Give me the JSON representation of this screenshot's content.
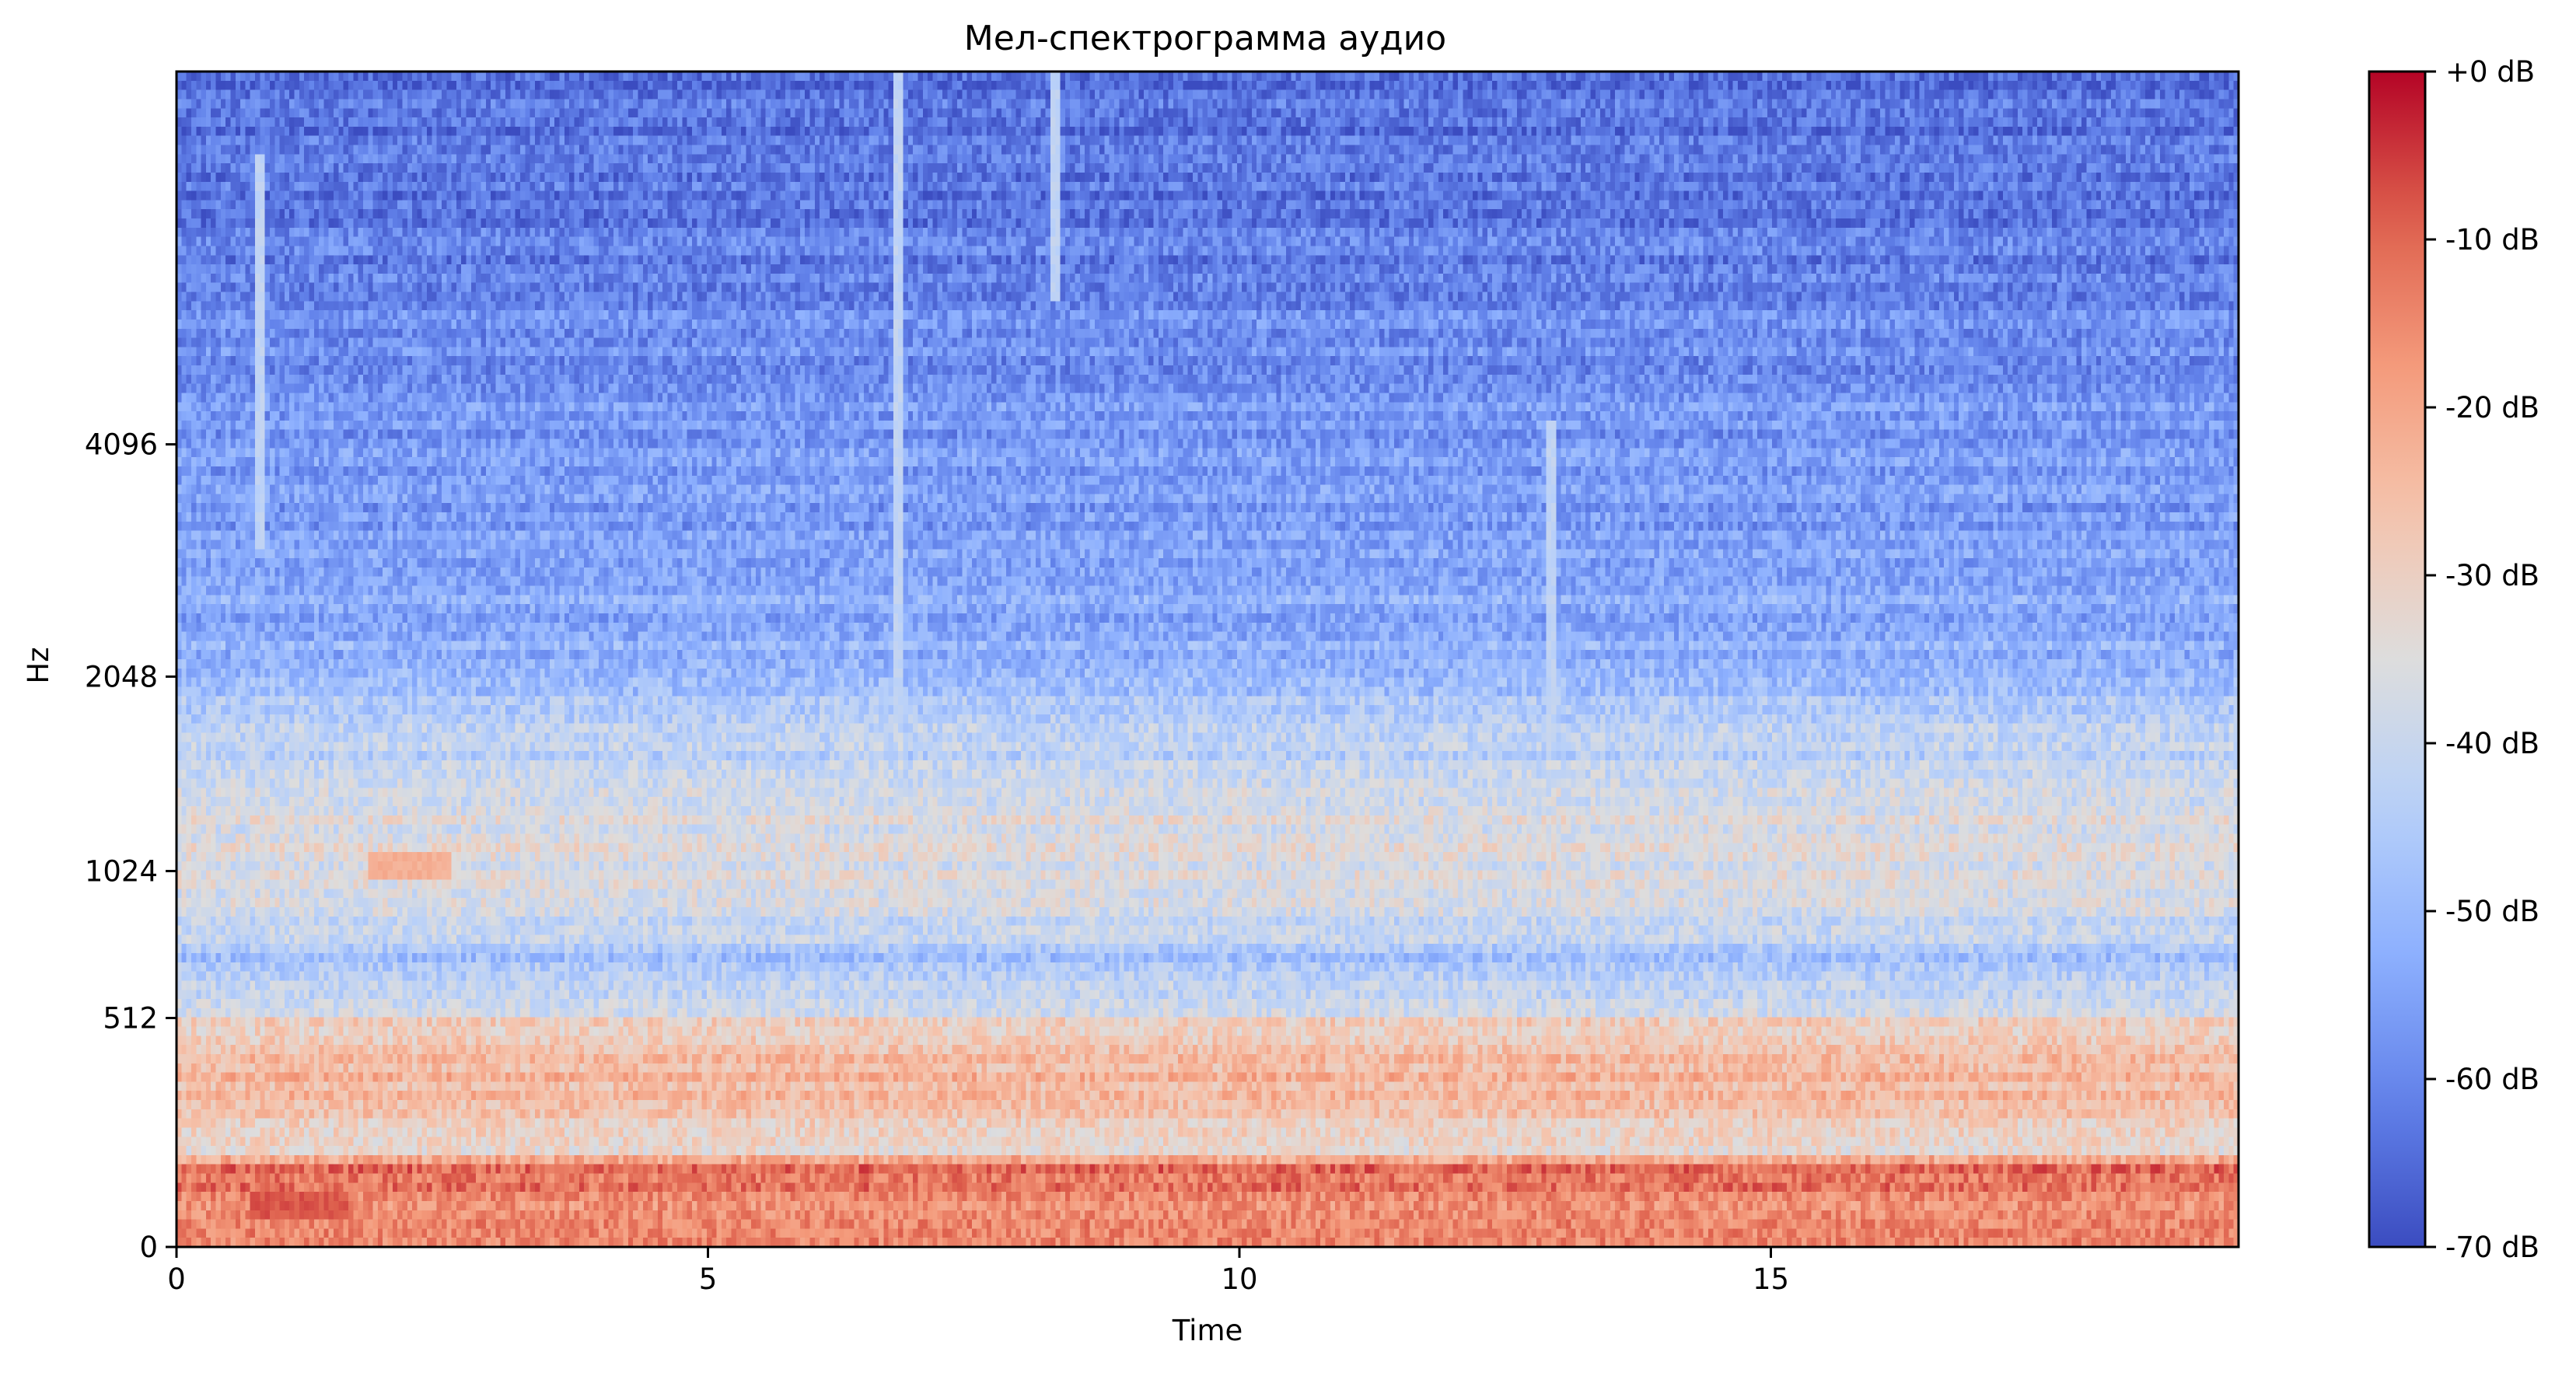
{
  "chart_data": {
    "type": "heatmap",
    "title": "Мел-спектрограмма аудио",
    "xlabel": "Time",
    "ylabel": "Hz",
    "xlim": [
      0,
      19.4
    ],
    "x_ticks": [
      0,
      5,
      10,
      15
    ],
    "y_scale": "mel",
    "ylim_hz": [
      0,
      11025
    ],
    "y_ticks": [
      0,
      512,
      1024,
      2048,
      4096
    ],
    "colormap": "coolwarm",
    "colorbar": {
      "range_db": [
        -70,
        0
      ],
      "ticks": [
        0,
        -10,
        -20,
        -30,
        -40,
        -50,
        -60,
        -70
      ],
      "tick_labels": [
        "+0 dB",
        "-10 dB",
        "-20 dB",
        "-30 dB",
        "-40 dB",
        "-50 dB",
        "-60 dB",
        "-70 dB"
      ],
      "placement": "right"
    },
    "energy_profile_db": [
      {
        "hz": 0,
        "db": -16
      },
      {
        "hz": 60,
        "db": -14
      },
      {
        "hz": 150,
        "db": -13
      },
      {
        "hz": 180,
        "db": -35
      },
      {
        "hz": 250,
        "db": -26
      },
      {
        "hz": 350,
        "db": -24
      },
      {
        "hz": 480,
        "db": -28
      },
      {
        "hz": 560,
        "db": -41
      },
      {
        "hz": 700,
        "db": -47
      },
      {
        "hz": 850,
        "db": -39
      },
      {
        "hz": 1024,
        "db": -35
      },
      {
        "hz": 1300,
        "db": -37
      },
      {
        "hz": 1700,
        "db": -43
      },
      {
        "hz": 2048,
        "db": -49
      },
      {
        "hz": 2500,
        "db": -53
      },
      {
        "hz": 3500,
        "db": -56
      },
      {
        "hz": 5000,
        "db": -58
      },
      {
        "hz": 6500,
        "db": -61
      },
      {
        "hz": 11025,
        "db": -65
      }
    ],
    "features": [
      {
        "kind": "tone",
        "t_start": 1.8,
        "t_end": 2.6,
        "hz": 1030,
        "db": -22
      },
      {
        "kind": "tone",
        "t_start": 0.7,
        "t_end": 1.6,
        "hz": 80,
        "db": -8
      },
      {
        "kind": "transient",
        "t": 0.8,
        "hz_min": 3000,
        "hz_max": 9000
      },
      {
        "kind": "transient",
        "t": 6.8,
        "hz_min": 1800,
        "hz_max": 11025
      },
      {
        "kind": "transient",
        "t": 8.25,
        "hz_min": 6000,
        "hz_max": 11025
      },
      {
        "kind": "transient",
        "t": 12.95,
        "hz_min": 1600,
        "hz_max": 4400
      }
    ]
  }
}
